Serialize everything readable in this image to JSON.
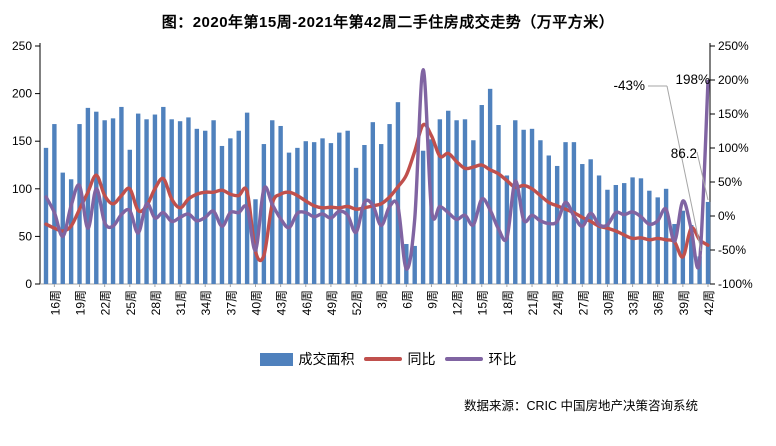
{
  "title": "图：2020年第15周-2021年第42周二手住房成交走势（万平方米）",
  "footer": "数据来源：CRIC 中国房地产决策咨询系统",
  "legend": [
    {
      "label": "成交面积",
      "type": "bar",
      "color": "#4f81bd"
    },
    {
      "label": "同比",
      "type": "line",
      "color": "#c0504d"
    },
    {
      "label": "环比",
      "type": "line",
      "color": "#8064a2"
    }
  ],
  "chart_data": {
    "type": "bar+line combo, dual axis",
    "x_span": "2020年第15周 – 2021年第42周 (80 weekly points)",
    "n_points": 80,
    "x_tick_labels": [
      "16周",
      "19周",
      "22周",
      "25周",
      "28周",
      "31周",
      "34周",
      "37周",
      "40周",
      "43周",
      "46周",
      "49周",
      "52周",
      "3周",
      "6周",
      "9周",
      "12周",
      "15周",
      "18周",
      "21周",
      "24周",
      "27周",
      "30周",
      "33周",
      "36周",
      "39周",
      "42周"
    ],
    "x_tick_start_index": 1,
    "x_tick_every": 3,
    "axes": {
      "left": {
        "min": 0,
        "max": 250,
        "step": 50,
        "tick_labels": [
          "0",
          "50",
          "100",
          "150",
          "200",
          "250"
        ]
      },
      "right": {
        "min": -100,
        "max": 250,
        "step": 50,
        "tick_labels": [
          "-100%",
          "-50%",
          "0%",
          "50%",
          "100%",
          "150%",
          "200%",
          "250%"
        ]
      }
    },
    "grid": false,
    "legend_position": "bottom-center",
    "series": [
      {
        "name": "成交面积",
        "type": "bar",
        "axis": "left",
        "color": "#4f81bd",
        "values": [
          143,
          168,
          117,
          110,
          168,
          185,
          181,
          172,
          174,
          186,
          141,
          179,
          173,
          178,
          186,
          173,
          171,
          175,
          163,
          161,
          172,
          145,
          153,
          161,
          180,
          89,
          147,
          172,
          166,
          138,
          143,
          150,
          149,
          153,
          148,
          159,
          161,
          122,
          146,
          170,
          147,
          168,
          191,
          42,
          40,
          140,
          152,
          173,
          182,
          172,
          173,
          151,
          188,
          205,
          167,
          114,
          172,
          162,
          163,
          151,
          135,
          124,
          149,
          149,
          126,
          131,
          114,
          99,
          104,
          106,
          112,
          111,
          98,
          91,
          100,
          63,
          77,
          62,
          29,
          86.2
        ]
      },
      {
        "name": "同比",
        "type": "line",
        "axis": "right",
        "unit": "%",
        "color": "#c0504d",
        "values": [
          -12,
          -18,
          -22,
          -15,
          10,
          35,
          60,
          30,
          18,
          30,
          40,
          8,
          15,
          40,
          55,
          25,
          12,
          25,
          32,
          35,
          35,
          38,
          32,
          30,
          36,
          -52,
          -58,
          18,
          32,
          35,
          30,
          22,
          15,
          12,
          13,
          12,
          14,
          10,
          12,
          15,
          18,
          28,
          43,
          60,
          95,
          134,
          118,
          88,
          92,
          80,
          70,
          72,
          75,
          68,
          62,
          52,
          42,
          45,
          40,
          30,
          20,
          15,
          10,
          5,
          -2,
          -8,
          -15,
          -18,
          -22,
          -28,
          -33,
          -32,
          -35,
          -33,
          -35,
          -38,
          -60,
          -18,
          -35,
          -43
        ]
      },
      {
        "name": "环比",
        "type": "line",
        "axis": "right",
        "unit": "%",
        "color": "#8064a2",
        "values": [
          28,
          5,
          -30,
          15,
          45,
          -18,
          40,
          -10,
          -15,
          2,
          8,
          -25,
          18,
          -3,
          5,
          -8,
          -2,
          3,
          -7,
          -2,
          7,
          -15,
          5,
          5,
          12,
          -50,
          40,
          17,
          -4,
          -17,
          4,
          5,
          -1,
          3,
          -3,
          7,
          1,
          -24,
          20,
          16,
          -14,
          14,
          14,
          -78,
          -5,
          215,
          9,
          14,
          5,
          -5,
          1,
          -13,
          25,
          9,
          -19,
          -32,
          51,
          -6,
          1,
          -7,
          -11,
          -8,
          20,
          0,
          -15,
          4,
          -13,
          -13,
          5,
          2,
          6,
          -1,
          -12,
          -7,
          10,
          -37,
          22,
          -19,
          -66,
          198
        ]
      }
    ],
    "annotations": [
      {
        "text": "-43%",
        "refers_to": "同比 last point (2021年42周)"
      },
      {
        "text": "198%",
        "refers_to": "环比 last point (2021年42周)"
      },
      {
        "text": "86.2",
        "refers_to": "成交面积 last bar (2021年42周)"
      }
    ],
    "colors": {
      "bar": "#4f81bd",
      "yoy_line": "#c0504d",
      "wow_line": "#8064a2",
      "leader_line": "#a6a6a6",
      "axis": "#000000",
      "baseline": "#a6a6a6"
    }
  }
}
